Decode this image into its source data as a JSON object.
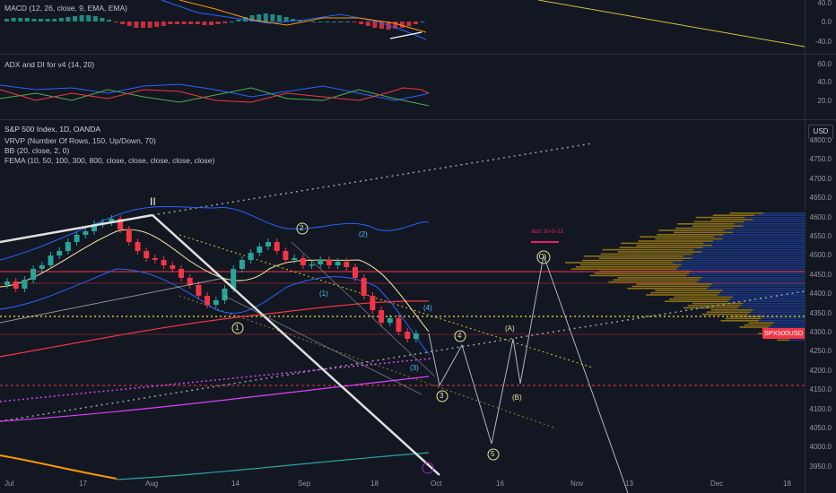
{
  "macd": {
    "legend": "MACD (12, 26, close, 9, EMA, EMA)",
    "axis": [
      "40.0",
      "0.0",
      "-40.0"
    ]
  },
  "adx": {
    "legend": "ADX and DI for v4 (14, 20)",
    "axis": [
      "60.0",
      "40.0",
      "20.0"
    ]
  },
  "main": {
    "title": "S&P 500 Index, 1D, OANDA",
    "indicators": [
      "VRVP (Number Of Rows, 150, Up/Down, 70)",
      "BB (20, close, 2, 0)",
      "FEMA (10, 50, 100, 300, 800, close, close, close, close, close)"
    ],
    "currency": "USD",
    "price_badge": "SPX500USD",
    "note": "/biz/ 30-9-23",
    "price_axis": [
      "4800.0",
      "4750.0",
      "4700.0",
      "4650.0",
      "4600.0",
      "4550.0",
      "4500.0",
      "4450.0",
      "4400.0",
      "4350.0",
      "4300.0",
      "4250.0",
      "4200.0",
      "4150.0",
      "4100.0",
      "4050.0",
      "4000.0",
      "3950.0"
    ],
    "time_axis": [
      "Jul",
      "17",
      "Aug",
      "14",
      "Sep",
      "18",
      "Oct",
      "16",
      "Nov",
      "13",
      "Dec",
      "18"
    ]
  },
  "waves": {
    "roman": "II",
    "yellow": [
      "1",
      "2",
      "4",
      "3",
      "5"
    ],
    "cyan": [
      "(1)",
      "(2)",
      "(3)",
      "(4)"
    ],
    "abc": [
      "(A)",
      "(B)",
      "(C)"
    ]
  },
  "colors": {
    "up": "#26a69a",
    "down": "#f23645",
    "wave_yellow": "#e8e59a",
    "wave_cyan": "#4fc3f7"
  }
}
